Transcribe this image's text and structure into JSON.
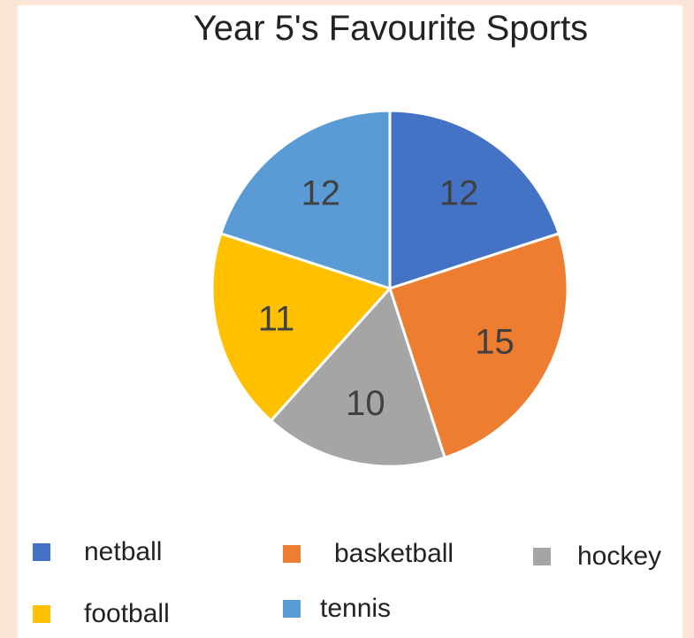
{
  "chart_data": {
    "type": "pie",
    "title": "Year 5's Favourite Sports",
    "categories": [
      "netball",
      "basketball",
      "hockey",
      "football",
      "tennis"
    ],
    "values": [
      12,
      15,
      10,
      11,
      12
    ],
    "colors": [
      "#4472c4",
      "#ed7d31",
      "#a5a5a5",
      "#ffc000",
      "#5b9bd5"
    ],
    "data_labels": [
      "12",
      "15",
      "10",
      "11",
      "12"
    ],
    "legend": {
      "position": "bottom",
      "entries": [
        {
          "label": "netball",
          "color": "#4472c4"
        },
        {
          "label": "basketball",
          "color": "#ed7d31"
        },
        {
          "label": "hockey",
          "color": "#a5a5a5"
        },
        {
          "label": "football",
          "color": "#ffc000"
        },
        {
          "label": "tennis",
          "color": "#5b9bd5"
        }
      ]
    }
  }
}
